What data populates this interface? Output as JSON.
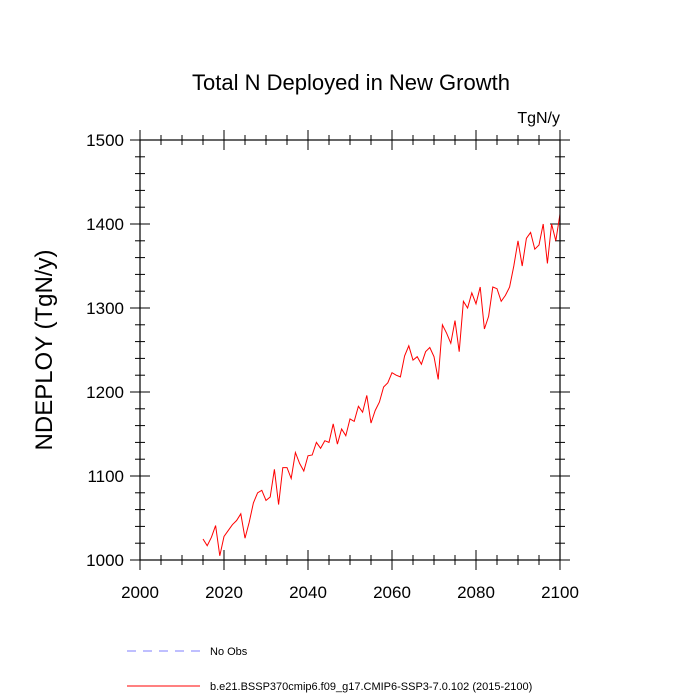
{
  "chart_data": {
    "type": "line",
    "title": "Total N Deployed in New Growth",
    "units": "TgN/y",
    "ylabel": "NDEPLOY  (TgN/y)",
    "xlabel": "",
    "xlim": [
      2000,
      2100
    ],
    "ylim": [
      1000,
      1500
    ],
    "x_ticks": [
      "2000",
      "2020",
      "2040",
      "2060",
      "2080",
      "2100"
    ],
    "y_ticks": [
      "1000",
      "1100",
      "1200",
      "1300",
      "1400",
      "1500"
    ],
    "grid": false,
    "legend_placement": "bottom-left",
    "legend": [
      {
        "label": "No Obs",
        "style": "dashed",
        "color": "#7f7fff"
      },
      {
        "label": "b.e21.BSSP370cmip6.f09_g17.CMIP6-SSP3-7.0.102 (2015-2100)",
        "style": "solid",
        "color": "#ff0000"
      }
    ],
    "series": [
      {
        "name": "b.e21.BSSP370cmip6.f09_g17.CMIP6-SSP3-7.0.102 (2015-2100)",
        "color": "#ff0000",
        "x": [
          2015,
          2016,
          2017,
          2018,
          2019,
          2020,
          2021,
          2022,
          2023,
          2024,
          2025,
          2026,
          2027,
          2028,
          2029,
          2030,
          2031,
          2032,
          2033,
          2034,
          2035,
          2036,
          2037,
          2038,
          2039,
          2040,
          2041,
          2042,
          2043,
          2044,
          2045,
          2046,
          2047,
          2048,
          2049,
          2050,
          2051,
          2052,
          2053,
          2054,
          2055,
          2056,
          2057,
          2058,
          2059,
          2060,
          2061,
          2062,
          2063,
          2064,
          2065,
          2066,
          2067,
          2068,
          2069,
          2070,
          2071,
          2072,
          2073,
          2074,
          2075,
          2076,
          2077,
          2078,
          2079,
          2080,
          2081,
          2082,
          2083,
          2084,
          2085,
          2086,
          2087,
          2088,
          2089,
          2090,
          2091,
          2092,
          2093,
          2094,
          2095,
          2096,
          2097,
          2098,
          2099,
          2100
        ],
        "values": [
          1025,
          1017,
          1027,
          1041,
          1005,
          1028,
          1035,
          1042,
          1047,
          1055,
          1026,
          1045,
          1068,
          1080,
          1083,
          1071,
          1075,
          1108,
          1066,
          1110,
          1110,
          1097,
          1128,
          1115,
          1106,
          1124,
          1125,
          1140,
          1133,
          1142,
          1140,
          1162,
          1138,
          1156,
          1148,
          1168,
          1165,
          1183,
          1176,
          1196,
          1163,
          1178,
          1188,
          1206,
          1211,
          1223,
          1220,
          1218,
          1243,
          1255,
          1238,
          1242,
          1233,
          1248,
          1253,
          1242,
          1215,
          1280,
          1270,
          1258,
          1285,
          1248,
          1308,
          1300,
          1318,
          1305,
          1325,
          1275,
          1290,
          1325,
          1323,
          1308,
          1315,
          1325,
          1350,
          1380,
          1350,
          1383,
          1390,
          1370,
          1375,
          1400,
          1353,
          1400,
          1380,
          1412
        ]
      }
    ]
  }
}
